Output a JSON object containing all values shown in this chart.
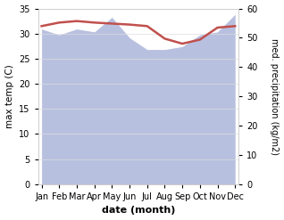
{
  "months": [
    "Jan",
    "Feb",
    "Mar",
    "Apr",
    "May",
    "Jun",
    "Jul",
    "Aug",
    "Sep",
    "Oct",
    "Nov",
    "Dec"
  ],
  "temperature": [
    31.5,
    32.2,
    32.5,
    32.2,
    32.0,
    31.8,
    31.5,
    29.0,
    28.0,
    28.8,
    31.2,
    31.5
  ],
  "precipitation": [
    53,
    51,
    53,
    52,
    57,
    50,
    46,
    46,
    47,
    51,
    52,
    58
  ],
  "temp_color": "#c0504d",
  "precip_fill_color": "#b8c0e0",
  "left_ylim": [
    0,
    35
  ],
  "right_ylim": [
    0,
    60
  ],
  "left_yticks": [
    0,
    5,
    10,
    15,
    20,
    25,
    30,
    35
  ],
  "right_yticks": [
    0,
    10,
    20,
    30,
    40,
    50,
    60
  ],
  "xlabel": "date (month)",
  "ylabel_left": "max temp (C)",
  "ylabel_right": "med. precipitation (kg/m2)",
  "bg_color": "#ffffff"
}
